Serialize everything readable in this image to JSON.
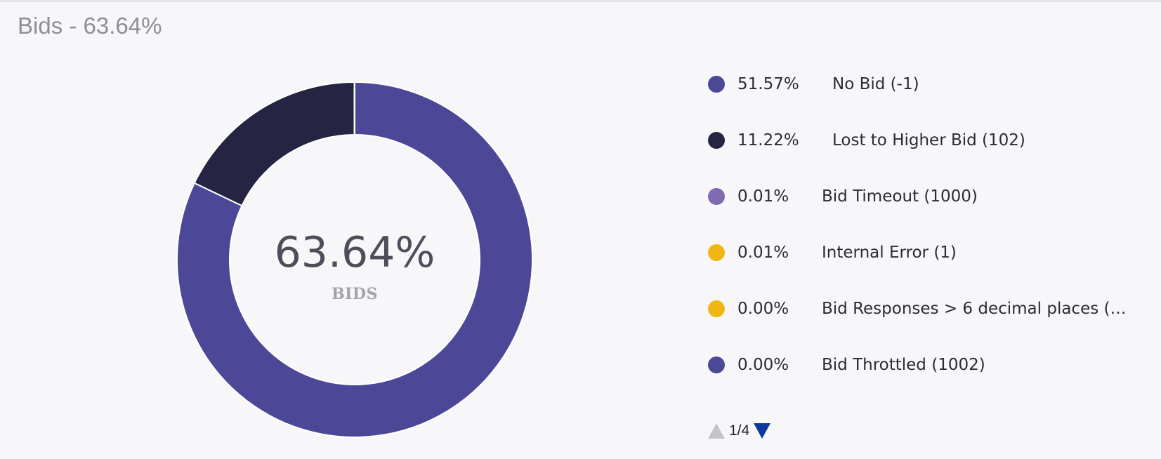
{
  "panel": {
    "title": "Bids - 63.64%"
  },
  "center": {
    "value": "63.64%",
    "label": "BIDS"
  },
  "chart_data": {
    "type": "pie",
    "title": "Bids - 63.64%",
    "center_text": "63.64%",
    "center_subtext": "BIDS",
    "series": [
      {
        "name": "No Bid (-1)",
        "label": "51.57%",
        "value": 51.57,
        "color": "#4c4796"
      },
      {
        "name": "Lost to Higher Bid (102)",
        "label": "11.22%",
        "value": 11.22,
        "color": "#252543"
      },
      {
        "name": "Bid Timeout (1000)",
        "label": "0.01%",
        "value": 0.01,
        "color": "#7e6bb4"
      },
      {
        "name": "Internal Error (1)",
        "label": "0.01%",
        "value": 0.01,
        "color": "#f2b612"
      },
      {
        "name": "Bid Responses > 6 decimal places (…",
        "label": "0.00%",
        "value": 0.0,
        "color": "#f2b612"
      },
      {
        "name": "Bid Throttled (1002)",
        "label": "0.00%",
        "value": 0.0,
        "color": "#4c4796"
      }
    ],
    "legend_placement": "right"
  },
  "pager": {
    "text": "1/4"
  }
}
